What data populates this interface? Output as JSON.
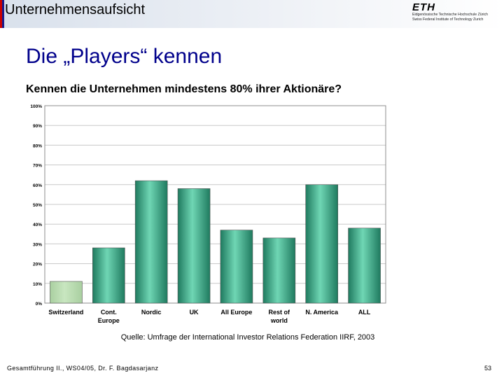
{
  "header": {
    "section_title": "Unternehmensaufsicht",
    "logo": {
      "mark": "ETH",
      "line1": "Eidgenössische Technische Hochschule Zürich",
      "line2": "Swiss Federal Institute of Technology Zurich"
    }
  },
  "slide": {
    "title": "Die „Players“ kennen",
    "question": "Kennen die Unternehmen mindestens 80% ihrer Aktionäre?"
  },
  "chart_data": {
    "type": "bar",
    "categories": [
      [
        "Switzerland"
      ],
      [
        "Cont.",
        "Europe"
      ],
      [
        "Nordic"
      ],
      [
        "UK"
      ],
      [
        "All Europe"
      ],
      [
        "Rest of",
        "world"
      ],
      [
        "N. America"
      ],
      [
        "ALL"
      ]
    ],
    "values": [
      11,
      28,
      62,
      58,
      37,
      33,
      60,
      38
    ],
    "ylim": [
      0,
      100
    ],
    "yticks": [
      0,
      10,
      20,
      30,
      40,
      50,
      60,
      70,
      80,
      90,
      100
    ],
    "ytick_labels": [
      "0%",
      "10%",
      "20%",
      "30%",
      "40%",
      "50%",
      "60%",
      "70%",
      "80%",
      "90%",
      "100%"
    ],
    "grid": true,
    "colors": {
      "highlight": "#c8e6c0",
      "bar": "#2fae88",
      "bar_dark": "#1f7a5f",
      "bar_light": "#6fd6b4",
      "grid": "#c8c8c8",
      "frame": "#8c8c8c"
    },
    "highlight_index": 0
  },
  "source": "Quelle: Umfrage der International Investor Relations Federation IIRF, 2003",
  "footer": {
    "left": "Gesamtführung II., WS04/05, Dr. F. Bagdasarjanz",
    "page": "53"
  }
}
